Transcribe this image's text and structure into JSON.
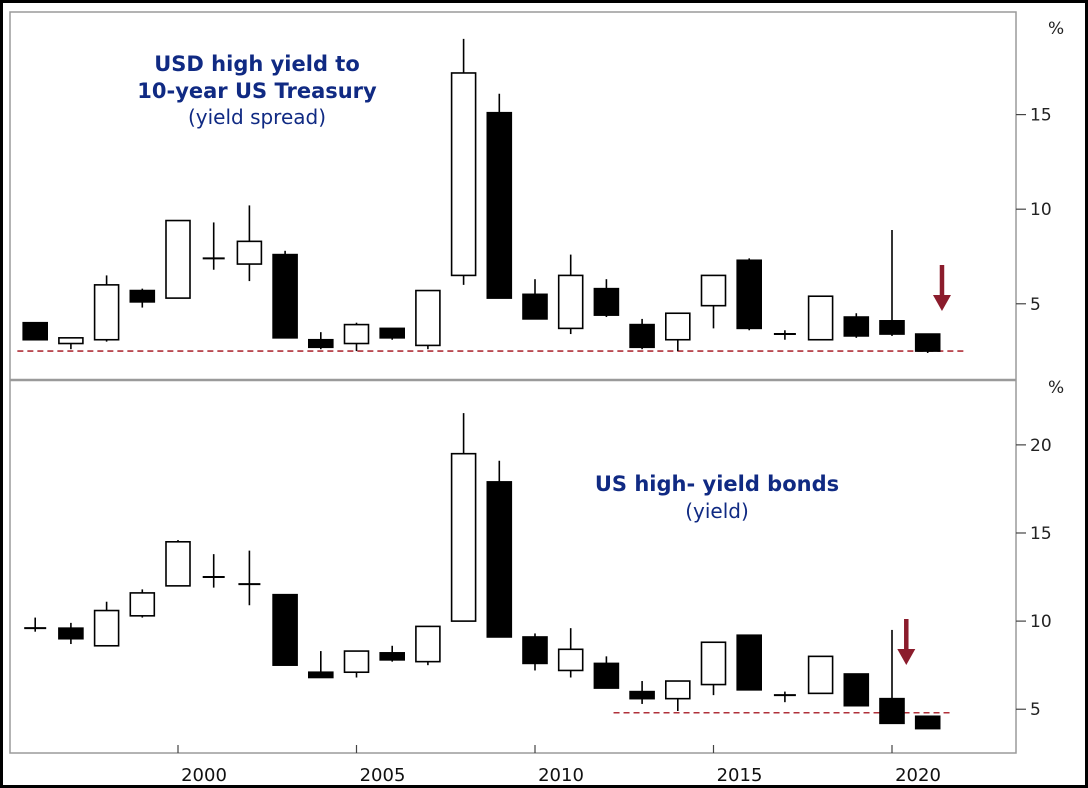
{
  "colors": {
    "title": "#102a83",
    "up_fill": "#ffffff",
    "down_fill": "#000000",
    "dashed": "#b0303a",
    "arrow": "#8b1c2c",
    "divider": "#9a9a9a"
  },
  "x_axis": {
    "years": [
      "2000",
      "2005",
      "2010",
      "2015",
      "2020"
    ]
  },
  "chart_data": [
    {
      "type": "candlestick",
      "title_lines": [
        "USD high yield to",
        "10-year US Treasury"
      ],
      "subtitle": "(yield spread)",
      "unit": "%",
      "ylim": [
        1.5,
        20
      ],
      "yticks": [
        5,
        10,
        15
      ],
      "reference_line": 2.5,
      "reference_x_range": [
        1995.5,
        2022.0
      ],
      "arrow_year": 2021.4,
      "candles": [
        {
          "year": 1996,
          "open": 4.0,
          "close": 3.1,
          "high": 4.0,
          "low": 3.1
        },
        {
          "year": 1997,
          "open": 2.9,
          "close": 3.2,
          "high": 3.2,
          "low": 2.6
        },
        {
          "year": 1998,
          "open": 3.1,
          "close": 6.0,
          "high": 6.5,
          "low": 3.0
        },
        {
          "year": 1999,
          "open": 5.7,
          "close": 5.1,
          "high": 5.8,
          "low": 4.8
        },
        {
          "year": 2000,
          "open": 5.3,
          "close": 9.4,
          "high": 9.4,
          "low": 5.3
        },
        {
          "year": 2001,
          "open": 7.4,
          "close": 7.4,
          "high": 9.3,
          "low": 6.8
        },
        {
          "year": 2002,
          "open": 7.1,
          "close": 8.3,
          "high": 10.2,
          "low": 6.2
        },
        {
          "year": 2003,
          "open": 7.6,
          "close": 3.2,
          "high": 7.8,
          "low": 3.2
        },
        {
          "year": 2004,
          "open": 3.1,
          "close": 2.7,
          "high": 3.5,
          "low": 2.6
        },
        {
          "year": 2005,
          "open": 2.9,
          "close": 3.9,
          "high": 4.0,
          "low": 2.5
        },
        {
          "year": 2006,
          "open": 3.7,
          "close": 3.2,
          "high": 3.7,
          "low": 3.1
        },
        {
          "year": 2007,
          "open": 2.8,
          "close": 5.7,
          "high": 5.7,
          "low": 2.6
        },
        {
          "year": 2008,
          "open": 6.5,
          "close": 17.2,
          "high": 19.0,
          "low": 6.0
        },
        {
          "year": 2009,
          "open": 15.1,
          "close": 5.3,
          "high": 16.1,
          "low": 5.3
        },
        {
          "year": 2010,
          "open": 5.5,
          "close": 4.2,
          "high": 6.3,
          "low": 4.2
        },
        {
          "year": 2011,
          "open": 3.7,
          "close": 6.5,
          "high": 7.6,
          "low": 3.4
        },
        {
          "year": 2012,
          "open": 5.8,
          "close": 4.4,
          "high": 6.3,
          "low": 4.3
        },
        {
          "year": 2013,
          "open": 3.9,
          "close": 2.7,
          "high": 4.2,
          "low": 2.6
        },
        {
          "year": 2014,
          "open": 3.1,
          "close": 4.5,
          "high": 4.5,
          "low": 2.5
        },
        {
          "year": 2015,
          "open": 4.9,
          "close": 6.5,
          "high": 6.5,
          "low": 3.7
        },
        {
          "year": 2016,
          "open": 7.3,
          "close": 3.7,
          "high": 7.4,
          "low": 3.6
        },
        {
          "year": 2017,
          "open": 3.4,
          "close": 3.4,
          "high": 3.6,
          "low": 3.1
        },
        {
          "year": 2018,
          "open": 3.1,
          "close": 5.4,
          "high": 5.4,
          "low": 3.1
        },
        {
          "year": 2019,
          "open": 4.3,
          "close": 3.3,
          "high": 4.5,
          "low": 3.2
        },
        {
          "year": 2020,
          "open": 4.1,
          "close": 3.4,
          "high": 8.9,
          "low": 3.3
        },
        {
          "year": 2021,
          "open": 3.4,
          "close": 2.5,
          "high": 3.4,
          "low": 2.4
        }
      ]
    },
    {
      "type": "candlestick",
      "title_lines": [
        "US high- yield bonds"
      ],
      "subtitle": "(yield)",
      "unit": "%",
      "ylim": [
        2.8,
        23
      ],
      "yticks": [
        5,
        10,
        15,
        20
      ],
      "reference_line": 4.8,
      "reference_x_range": [
        2012.2,
        2021.7
      ],
      "arrow_year": 2020.4,
      "candles": [
        {
          "year": 1996,
          "open": 9.6,
          "close": 9.6,
          "high": 10.2,
          "low": 9.4
        },
        {
          "year": 1997,
          "open": 9.6,
          "close": 9.0,
          "high": 9.9,
          "low": 8.7
        },
        {
          "year": 1998,
          "open": 8.6,
          "close": 10.6,
          "high": 11.1,
          "low": 8.6
        },
        {
          "year": 1999,
          "open": 10.3,
          "close": 11.6,
          "high": 11.8,
          "low": 10.2
        },
        {
          "year": 2000,
          "open": 12.0,
          "close": 14.5,
          "high": 14.6,
          "low": 12.0
        },
        {
          "year": 2001,
          "open": 12.5,
          "close": 12.5,
          "high": 13.8,
          "low": 11.9
        },
        {
          "year": 2002,
          "open": 12.1,
          "close": 12.1,
          "high": 14.0,
          "low": 10.9
        },
        {
          "year": 2003,
          "open": 11.5,
          "close": 7.5,
          "high": 11.5,
          "low": 7.5
        },
        {
          "year": 2004,
          "open": 7.1,
          "close": 6.8,
          "high": 8.3,
          "low": 6.8
        },
        {
          "year": 2005,
          "open": 7.1,
          "close": 8.3,
          "high": 8.3,
          "low": 6.8
        },
        {
          "year": 2006,
          "open": 8.2,
          "close": 7.8,
          "high": 8.6,
          "low": 7.7
        },
        {
          "year": 2007,
          "open": 7.7,
          "close": 9.7,
          "high": 9.7,
          "low": 7.5
        },
        {
          "year": 2008,
          "open": 10.0,
          "close": 19.5,
          "high": 21.8,
          "low": 10.0
        },
        {
          "year": 2009,
          "open": 17.9,
          "close": 9.1,
          "high": 19.1,
          "low": 9.1
        },
        {
          "year": 2010,
          "open": 9.1,
          "close": 7.6,
          "high": 9.3,
          "low": 7.2
        },
        {
          "year": 2011,
          "open": 7.2,
          "close": 8.4,
          "high": 9.6,
          "low": 6.8
        },
        {
          "year": 2012,
          "open": 7.6,
          "close": 6.2,
          "high": 8.0,
          "low": 6.2
        },
        {
          "year": 2013,
          "open": 6.0,
          "close": 5.6,
          "high": 6.6,
          "low": 5.3
        },
        {
          "year": 2014,
          "open": 5.6,
          "close": 6.6,
          "high": 6.6,
          "low": 4.9
        },
        {
          "year": 2015,
          "open": 6.4,
          "close": 8.8,
          "high": 8.8,
          "low": 5.8
        },
        {
          "year": 2016,
          "open": 9.2,
          "close": 6.1,
          "high": 9.2,
          "low": 6.1
        },
        {
          "year": 2017,
          "open": 5.8,
          "close": 5.8,
          "high": 6.0,
          "low": 5.4
        },
        {
          "year": 2018,
          "open": 5.9,
          "close": 8.0,
          "high": 8.0,
          "low": 5.9
        },
        {
          "year": 2019,
          "open": 7.0,
          "close": 5.2,
          "high": 7.0,
          "low": 5.2
        },
        {
          "year": 2020,
          "open": 5.6,
          "close": 4.2,
          "high": 9.5,
          "low": 4.2
        },
        {
          "year": 2021,
          "open": 4.6,
          "close": 3.9,
          "high": 4.6,
          "low": 3.9
        }
      ]
    }
  ]
}
